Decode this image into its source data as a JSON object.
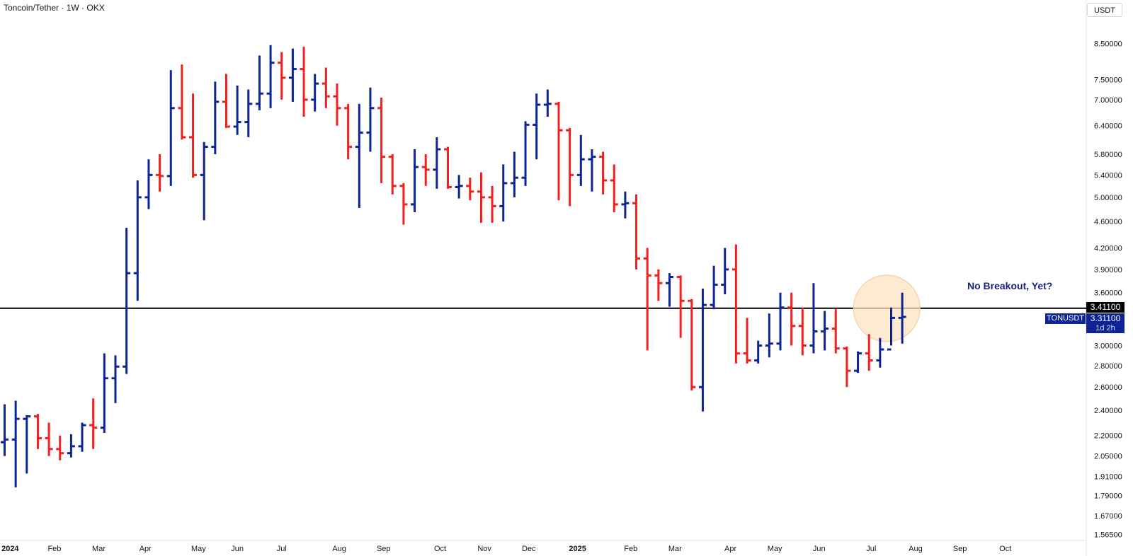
{
  "header": {
    "symbol_text": "Toncoin/Tether · 1W · OKX",
    "currency": "USDT"
  },
  "annotation": "No Breakout, Yet?",
  "price_tags": {
    "line_value": "3.41100",
    "symbol": "TONUSDT",
    "last_price": "3.31100",
    "countdown": "1d 2h"
  },
  "colors": {
    "up": "#0d2497",
    "down": "#f21f1f",
    "line": "#000000",
    "highlight": "#fde3c0",
    "axis_text": "#131722",
    "axis_border": "#e0e3eb"
  },
  "chart_data": {
    "type": "ohlc",
    "scale": "log",
    "ylim": [
      1.54,
      9.4
    ],
    "y_ticks": [
      "8.50000",
      "7.50000",
      "7.00000",
      "6.40000",
      "5.80000",
      "5.40000",
      "5.00000",
      "4.60000",
      "4.20000",
      "3.90000",
      "3.60000",
      "3.00000",
      "2.80000",
      "2.60000",
      "2.40000",
      "2.20000",
      "2.05000",
      "1.91000",
      "1.79000",
      "1.67000",
      "1.56500"
    ],
    "x_labels": [
      {
        "label": "2024",
        "bar": 0.5,
        "bold": true
      },
      {
        "label": "Feb",
        "bar": 4.5
      },
      {
        "label": "Mar",
        "bar": 8.5
      },
      {
        "label": "Apr",
        "bar": 12.7
      },
      {
        "label": "May",
        "bar": 17.5
      },
      {
        "label": "Jun",
        "bar": 21.0
      },
      {
        "label": "Jul",
        "bar": 25.0
      },
      {
        "label": "Aug",
        "bar": 30.2
      },
      {
        "label": "Sep",
        "bar": 34.2
      },
      {
        "label": "Oct",
        "bar": 39.3
      },
      {
        "label": "Nov",
        "bar": 43.3
      },
      {
        "label": "Dec",
        "bar": 47.3
      },
      {
        "label": "2025",
        "bar": 51.7,
        "bold": true
      },
      {
        "label": "Feb",
        "bar": 56.5
      },
      {
        "label": "Mar",
        "bar": 60.5
      },
      {
        "label": "Apr",
        "bar": 65.5
      },
      {
        "label": "May",
        "bar": 69.5
      },
      {
        "label": "Jun",
        "bar": 73.5
      },
      {
        "label": "Jul",
        "bar": 78.2
      },
      {
        "label": "Aug",
        "bar": 82.2
      },
      {
        "label": "Sep",
        "bar": 86.2
      },
      {
        "label": "Oct",
        "bar": 90.3
      }
    ],
    "horizontal_line": 3.411,
    "highlight_circle_bar": 79.6,
    "highlight_circle_price": 3.41,
    "bars": [
      [
        2.15,
        2.45,
        2.05,
        2.17
      ],
      [
        2.17,
        2.48,
        1.84,
        2.33
      ],
      [
        2.33,
        2.36,
        1.93,
        2.35
      ],
      [
        2.35,
        2.37,
        2.1,
        2.18
      ],
      [
        2.18,
        2.3,
        2.05,
        2.1
      ],
      [
        2.1,
        2.2,
        2.02,
        2.07
      ],
      [
        2.07,
        2.21,
        2.04,
        2.12
      ],
      [
        2.12,
        2.3,
        2.08,
        2.28
      ],
      [
        2.28,
        2.5,
        2.1,
        2.26
      ],
      [
        2.26,
        2.92,
        2.22,
        2.68
      ],
      [
        2.68,
        2.9,
        2.46,
        2.79
      ],
      [
        2.79,
        4.5,
        2.72,
        3.85
      ],
      [
        3.85,
        5.3,
        3.5,
        5.0
      ],
      [
        5.0,
        5.7,
        4.8,
        5.4
      ],
      [
        5.4,
        5.8,
        5.1,
        5.38
      ],
      [
        5.38,
        7.75,
        5.2,
        6.8
      ],
      [
        6.8,
        7.9,
        6.1,
        6.15
      ],
      [
        6.15,
        7.15,
        5.35,
        5.4
      ],
      [
        5.4,
        6.05,
        4.62,
        5.95
      ],
      [
        5.95,
        7.45,
        5.8,
        6.95
      ],
      [
        6.95,
        7.65,
        6.35,
        6.38
      ],
      [
        6.38,
        7.35,
        6.2,
        6.48
      ],
      [
        6.48,
        7.25,
        6.15,
        6.9
      ],
      [
        6.9,
        8.15,
        6.75,
        7.15
      ],
      [
        7.15,
        8.45,
        6.8,
        7.95
      ],
      [
        7.95,
        8.25,
        7.0,
        7.55
      ],
      [
        7.55,
        8.35,
        6.95,
        7.78
      ],
      [
        7.78,
        8.4,
        6.6,
        7.0
      ],
      [
        7.0,
        7.65,
        6.72,
        7.4
      ],
      [
        7.4,
        7.82,
        6.8,
        7.08
      ],
      [
        7.08,
        7.4,
        6.4,
        6.8
      ],
      [
        6.8,
        6.9,
        5.7,
        5.95
      ],
      [
        5.95,
        6.9,
        4.82,
        6.25
      ],
      [
        6.25,
        7.3,
        5.85,
        6.8
      ],
      [
        6.8,
        7.05,
        5.25,
        5.75
      ],
      [
        5.75,
        5.8,
        5.05,
        5.2
      ],
      [
        5.2,
        5.25,
        4.55,
        4.88
      ],
      [
        4.88,
        5.9,
        4.75,
        5.55
      ],
      [
        5.55,
        5.8,
        5.2,
        5.5
      ],
      [
        5.5,
        6.15,
        5.15,
        5.9
      ],
      [
        5.9,
        5.95,
        5.15,
        5.18
      ],
      [
        5.18,
        5.4,
        4.98,
        5.2
      ],
      [
        5.2,
        5.35,
        4.95,
        5.1
      ],
      [
        5.1,
        5.45,
        4.58,
        5.0
      ],
      [
        5.0,
        5.2,
        4.58,
        4.85
      ],
      [
        4.85,
        5.6,
        4.6,
        5.25
      ],
      [
        5.25,
        5.85,
        5.0,
        5.35
      ],
      [
        5.35,
        6.5,
        5.2,
        6.42
      ],
      [
        6.42,
        7.15,
        5.7,
        6.88
      ],
      [
        6.88,
        7.25,
        6.6,
        6.9
      ],
      [
        6.9,
        6.95,
        4.95,
        6.3
      ],
      [
        6.3,
        6.35,
        4.85,
        5.4
      ],
      [
        5.4,
        6.2,
        5.2,
        5.7
      ],
      [
        5.7,
        5.9,
        5.1,
        5.75
      ],
      [
        5.75,
        5.85,
        5.05,
        5.3
      ],
      [
        5.3,
        5.6,
        4.75,
        4.88
      ],
      [
        4.88,
        5.1,
        4.65,
        4.9
      ],
      [
        4.9,
        5.05,
        3.9,
        4.05
      ],
      [
        4.05,
        4.2,
        2.95,
        3.82
      ],
      [
        3.82,
        3.9,
        3.5,
        3.72
      ],
      [
        3.72,
        3.85,
        3.43,
        3.8
      ],
      [
        3.8,
        3.82,
        3.08,
        3.5
      ],
      [
        3.5,
        3.52,
        2.57,
        2.6
      ],
      [
        2.6,
        3.65,
        2.39,
        3.45
      ],
      [
        3.45,
        3.95,
        3.4,
        3.7
      ],
      [
        3.7,
        4.2,
        3.58,
        3.9
      ],
      [
        3.9,
        4.25,
        2.82,
        2.92
      ],
      [
        2.92,
        3.3,
        2.82,
        2.85
      ],
      [
        2.85,
        3.05,
        2.82,
        3.0
      ],
      [
        3.0,
        3.35,
        2.88,
        3.02
      ],
      [
        3.02,
        3.6,
        2.95,
        3.42
      ],
      [
        3.42,
        3.6,
        3.0,
        3.21
      ],
      [
        3.21,
        3.42,
        2.9,
        3.0
      ],
      [
        3.0,
        3.72,
        2.92,
        3.15
      ],
      [
        3.15,
        3.38,
        2.95,
        3.18
      ],
      [
        3.18,
        3.4,
        2.92,
        2.97
      ],
      [
        2.97,
        2.99,
        2.6,
        2.75
      ],
      [
        2.75,
        2.94,
        2.73,
        2.92
      ],
      [
        2.92,
        3.12,
        2.75,
        2.85
      ],
      [
        2.85,
        3.08,
        2.78,
        2.96
      ],
      [
        2.96,
        3.42,
        3.0,
        3.3
      ],
      [
        3.3,
        3.6,
        3.02,
        3.311
      ]
    ]
  }
}
